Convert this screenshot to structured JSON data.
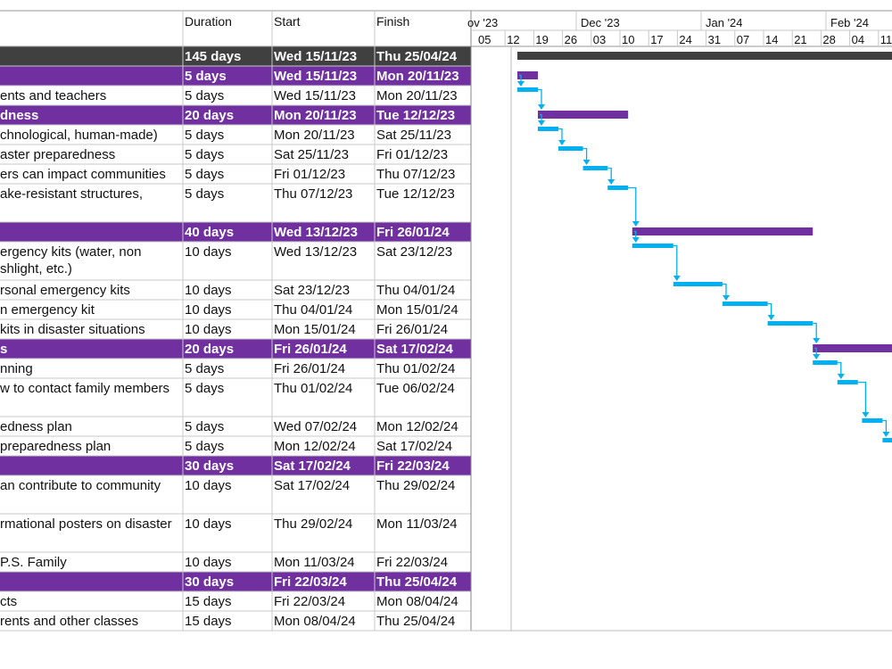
{
  "chart_data": {
    "type": "gantt",
    "columns": {
      "task": "",
      "duration": "Duration",
      "start": "Start",
      "finish": "Finish"
    },
    "timeline": {
      "months": [
        "ov '23",
        "Dec '23",
        "Jan '24",
        "Feb '24"
      ],
      "weeks": [
        "05",
        "12",
        "19",
        "26",
        "03",
        "10",
        "17",
        "24",
        "31",
        "07",
        "14",
        "21",
        "28",
        "04",
        "11"
      ]
    },
    "rows": [
      {
        "task": "",
        "duration": "145 days",
        "start": "Wed 15/11/23",
        "finish": "Thu 25/04/24",
        "level": "project"
      },
      {
        "task": "",
        "duration": "5 days",
        "start": "Wed 15/11/23",
        "finish": "Mon 20/11/23",
        "level": "summary"
      },
      {
        "task": "ents and teachers",
        "duration": "5 days",
        "start": "Wed 15/11/23",
        "finish": "Mon 20/11/23",
        "level": "task"
      },
      {
        "task": "dness",
        "duration": "20 days",
        "start": "Mon 20/11/23",
        "finish": "Tue 12/12/23",
        "level": "summary"
      },
      {
        "task": "chnological, human-made)",
        "duration": "5 days",
        "start": "Mon 20/11/23",
        "finish": "Sat 25/11/23",
        "level": "task"
      },
      {
        "task": "aster preparedness",
        "duration": "5 days",
        "start": "Sat 25/11/23",
        "finish": "Fri 01/12/23",
        "level": "task"
      },
      {
        "task": "ers can impact communities",
        "duration": "5 days",
        "start": "Fri 01/12/23",
        "finish": "Thu 07/12/23",
        "level": "task"
      },
      {
        "task": "ake-resistant structures,",
        "duration": "5 days",
        "start": "Thu 07/12/23",
        "finish": "Tue 12/12/23",
        "level": "task",
        "tall": true
      },
      {
        "task": "",
        "duration": "40 days",
        "start": "Wed 13/12/23",
        "finish": "Fri 26/01/24",
        "level": "summary"
      },
      {
        "task": "ergency kits (water, non",
        "task2": "shlight, etc.)",
        "duration": "10 days",
        "start": "Wed 13/12/23",
        "finish": "Sat 23/12/23",
        "level": "task",
        "tall": true
      },
      {
        "task": "rsonal emergency kits",
        "duration": "10 days",
        "start": "Sat 23/12/23",
        "finish": "Thu 04/01/24",
        "level": "task"
      },
      {
        "task": "n emergency kit",
        "duration": "10 days",
        "start": "Thu 04/01/24",
        "finish": "Mon 15/01/24",
        "level": "task"
      },
      {
        "task": "kits in disaster situations",
        "duration": "10 days",
        "start": "Mon 15/01/24",
        "finish": "Fri 26/01/24",
        "level": "task"
      },
      {
        "task": "s",
        "duration": "20 days",
        "start": "Fri 26/01/24",
        "finish": "Sat 17/02/24",
        "level": "summary"
      },
      {
        "task": "nning",
        "duration": "5 days",
        "start": "Fri 26/01/24",
        "finish": "Thu 01/02/24",
        "level": "task"
      },
      {
        "task": "w to contact family members",
        "duration": "5 days",
        "start": "Thu 01/02/24",
        "finish": "Tue 06/02/24",
        "level": "task",
        "tall": true
      },
      {
        "task": "edness plan",
        "duration": "5 days",
        "start": "Wed 07/02/24",
        "finish": "Mon 12/02/24",
        "level": "task"
      },
      {
        "task": "preparedness plan",
        "duration": "5 days",
        "start": "Mon 12/02/24",
        "finish": "Sat 17/02/24",
        "level": "task"
      },
      {
        "task": "",
        "duration": "30 days",
        "start": "Sat 17/02/24",
        "finish": "Fri 22/03/24",
        "level": "summary"
      },
      {
        "task": "an contribute to community",
        "duration": "10 days",
        "start": "Sat 17/02/24",
        "finish": "Thu 29/02/24",
        "level": "task",
        "tall": true
      },
      {
        "task": "rmational posters on disaster",
        "duration": "10 days",
        "start": "Thu 29/02/24",
        "finish": "Mon 11/03/24",
        "level": "task",
        "tall": true
      },
      {
        "task": "P.S. Family",
        "duration": "10 days",
        "start": "Mon 11/03/24",
        "finish": "Fri 22/03/24",
        "level": "task"
      },
      {
        "task": "",
        "duration": "30 days",
        "start": "Fri 22/03/24",
        "finish": "Thu 25/04/24",
        "level": "summary"
      },
      {
        "task": "cts",
        "duration": "15 days",
        "start": "Fri 22/03/24",
        "finish": "Mon 08/04/24",
        "level": "task"
      },
      {
        "task": "rents and other classes",
        "duration": "15 days",
        "start": "Mon 08/04/24",
        "finish": "Thu 25/04/24",
        "level": "task"
      }
    ],
    "colors": {
      "summary": "#7030a0",
      "task": "#00b0f0",
      "project": "#404040",
      "grid": "#c8c8c8"
    }
  }
}
